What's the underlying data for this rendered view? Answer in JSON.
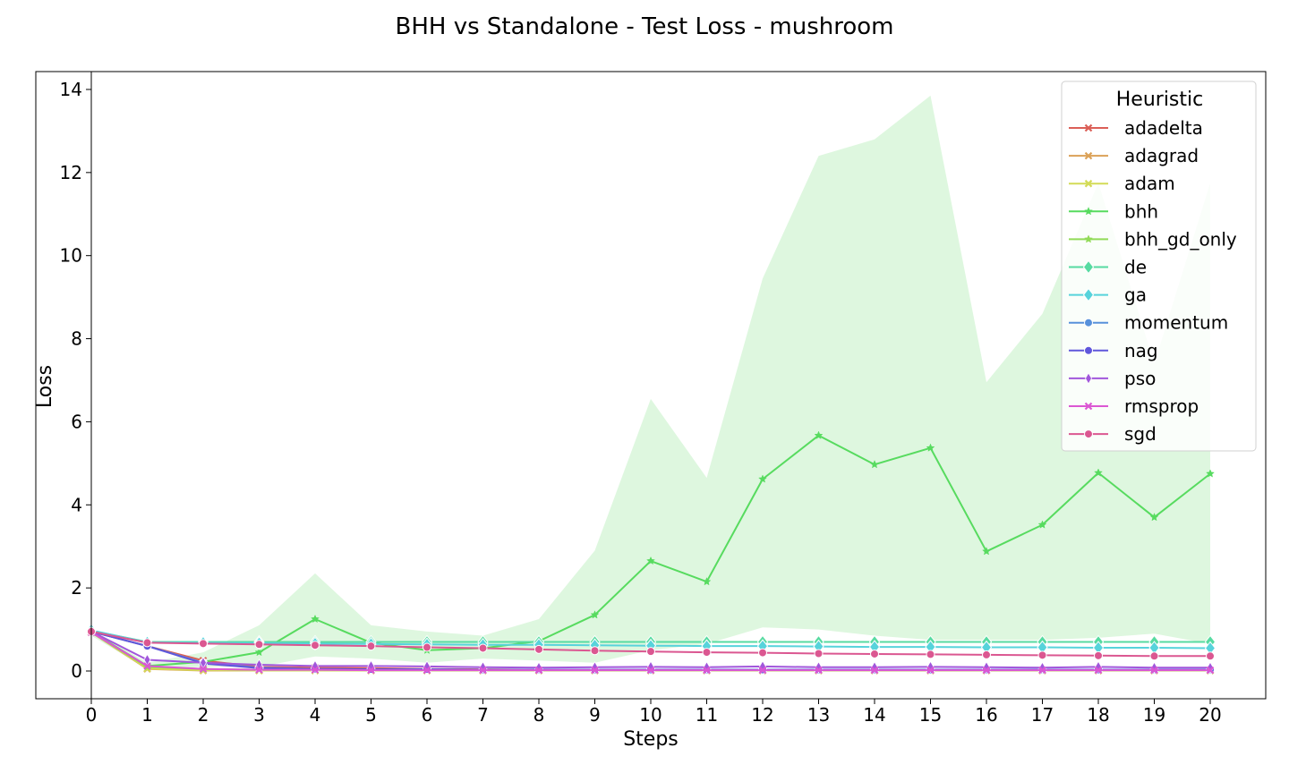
{
  "chart_data": {
    "type": "line",
    "title": "BHH vs Standalone - Test Loss - mushroom",
    "xlabel": "Steps",
    "ylabel": "Loss",
    "x": [
      0,
      1,
      2,
      3,
      4,
      5,
      6,
      7,
      8,
      9,
      10,
      11,
      12,
      13,
      14,
      15,
      16,
      17,
      18,
      19,
      20
    ],
    "xlim": [
      0,
      20
    ],
    "ylim": [
      -0.7,
      14.5
    ],
    "yticks": [
      0,
      2,
      4,
      6,
      8,
      10,
      12,
      14
    ],
    "grid": false,
    "legend": {
      "title": "Heuristic",
      "placement": "top-right"
    },
    "band": {
      "series": "bhh",
      "color": "#c8f2c9",
      "upper": [
        1.0,
        0.2,
        0.45,
        1.1,
        2.35,
        1.1,
        0.95,
        0.85,
        1.25,
        2.9,
        6.55,
        4.65,
        9.45,
        12.4,
        12.8,
        13.85,
        6.95,
        8.6,
        11.75,
        7.4,
        11.75
      ],
      "lower": [
        0.85,
        0.05,
        0.1,
        0.1,
        0.35,
        0.3,
        0.2,
        0.3,
        0.25,
        0.2,
        0.5,
        0.65,
        1.05,
        1.0,
        0.85,
        0.75,
        0.75,
        0.75,
        0.8,
        0.9,
        0.65
      ]
    },
    "series": [
      {
        "name": "adadelta",
        "color": "#db5f57",
        "marker": "x",
        "values": [
          0.95,
          0.6,
          0.25,
          0.1,
          0.08,
          0.07,
          0.05,
          0.04,
          0.03,
          0.03,
          0.03,
          0.02,
          0.02,
          0.02,
          0.02,
          0.02,
          0.02,
          0.02,
          0.02,
          0.02,
          0.02
        ]
      },
      {
        "name": "adagrad",
        "color": "#dba157",
        "marker": "x",
        "values": [
          0.93,
          0.05,
          0.01,
          0.01,
          0.01,
          0.01,
          0.01,
          0.01,
          0.01,
          0.01,
          0.01,
          0.01,
          0.01,
          0.01,
          0.01,
          0.01,
          0.01,
          0.01,
          0.01,
          0.01,
          0.01
        ]
      },
      {
        "name": "adam",
        "color": "#d3db57",
        "marker": "x",
        "values": [
          0.93,
          0.06,
          0.02,
          0.01,
          0.01,
          0.01,
          0.01,
          0.01,
          0.01,
          0.01,
          0.01,
          0.01,
          0.01,
          0.01,
          0.01,
          0.01,
          0.01,
          0.01,
          0.01,
          0.01,
          0.01
        ]
      },
      {
        "name": "bhh",
        "color": "#57db5f",
        "marker": "star",
        "values": [
          0.95,
          0.12,
          0.22,
          0.45,
          1.25,
          0.68,
          0.5,
          0.55,
          0.72,
          1.35,
          2.65,
          2.15,
          4.62,
          5.67,
          4.97,
          5.37,
          2.88,
          3.52,
          4.77,
          3.7,
          4.75
        ]
      },
      {
        "name": "bhh_gd_only",
        "color": "#91db57",
        "marker": "star",
        "values": [
          0.93,
          0.1,
          0.05,
          0.03,
          0.03,
          0.02,
          0.02,
          0.02,
          0.02,
          0.02,
          0.02,
          0.02,
          0.02,
          0.02,
          0.02,
          0.02,
          0.02,
          0.02,
          0.02,
          0.02,
          0.02
        ]
      },
      {
        "name": "de",
        "color": "#57dba1",
        "marker": "diamond",
        "values": [
          0.97,
          0.7,
          0.7,
          0.7,
          0.7,
          0.7,
          0.7,
          0.7,
          0.7,
          0.7,
          0.7,
          0.7,
          0.7,
          0.7,
          0.7,
          0.7,
          0.7,
          0.7,
          0.7,
          0.7,
          0.7
        ]
      },
      {
        "name": "ga",
        "color": "#57d3db",
        "marker": "diamond",
        "values": [
          0.98,
          0.69,
          0.68,
          0.67,
          0.66,
          0.65,
          0.64,
          0.63,
          0.63,
          0.62,
          0.61,
          0.6,
          0.6,
          0.59,
          0.58,
          0.58,
          0.57,
          0.57,
          0.56,
          0.56,
          0.55
        ]
      },
      {
        "name": "momentum",
        "color": "#5791db",
        "marker": "circle",
        "values": [
          0.95,
          0.6,
          0.2,
          0.08,
          0.05,
          0.04,
          0.04,
          0.03,
          0.03,
          0.03,
          0.03,
          0.03,
          0.03,
          0.03,
          0.03,
          0.03,
          0.03,
          0.03,
          0.03,
          0.03,
          0.03
        ]
      },
      {
        "name": "nag",
        "color": "#5f57db",
        "marker": "circle",
        "values": [
          0.95,
          0.6,
          0.18,
          0.07,
          0.05,
          0.04,
          0.04,
          0.03,
          0.03,
          0.03,
          0.03,
          0.03,
          0.03,
          0.03,
          0.03,
          0.03,
          0.03,
          0.03,
          0.03,
          0.03,
          0.03
        ]
      },
      {
        "name": "pso",
        "color": "#a157db",
        "marker": "thin-diamond",
        "values": [
          0.95,
          0.27,
          0.2,
          0.15,
          0.12,
          0.12,
          0.11,
          0.09,
          0.08,
          0.09,
          0.1,
          0.09,
          0.11,
          0.09,
          0.09,
          0.1,
          0.09,
          0.08,
          0.1,
          0.08,
          0.08
        ]
      },
      {
        "name": "rmsprop",
        "color": "#db57d3",
        "marker": "x",
        "values": [
          0.93,
          0.12,
          0.05,
          0.03,
          0.03,
          0.02,
          0.02,
          0.02,
          0.02,
          0.02,
          0.02,
          0.02,
          0.02,
          0.02,
          0.02,
          0.02,
          0.02,
          0.02,
          0.02,
          0.02,
          0.02
        ]
      },
      {
        "name": "sgd",
        "color": "#db5791",
        "marker": "circle",
        "values": [
          0.95,
          0.68,
          0.66,
          0.64,
          0.62,
          0.6,
          0.57,
          0.55,
          0.52,
          0.49,
          0.47,
          0.45,
          0.44,
          0.42,
          0.41,
          0.4,
          0.39,
          0.38,
          0.37,
          0.36,
          0.36
        ]
      }
    ]
  }
}
